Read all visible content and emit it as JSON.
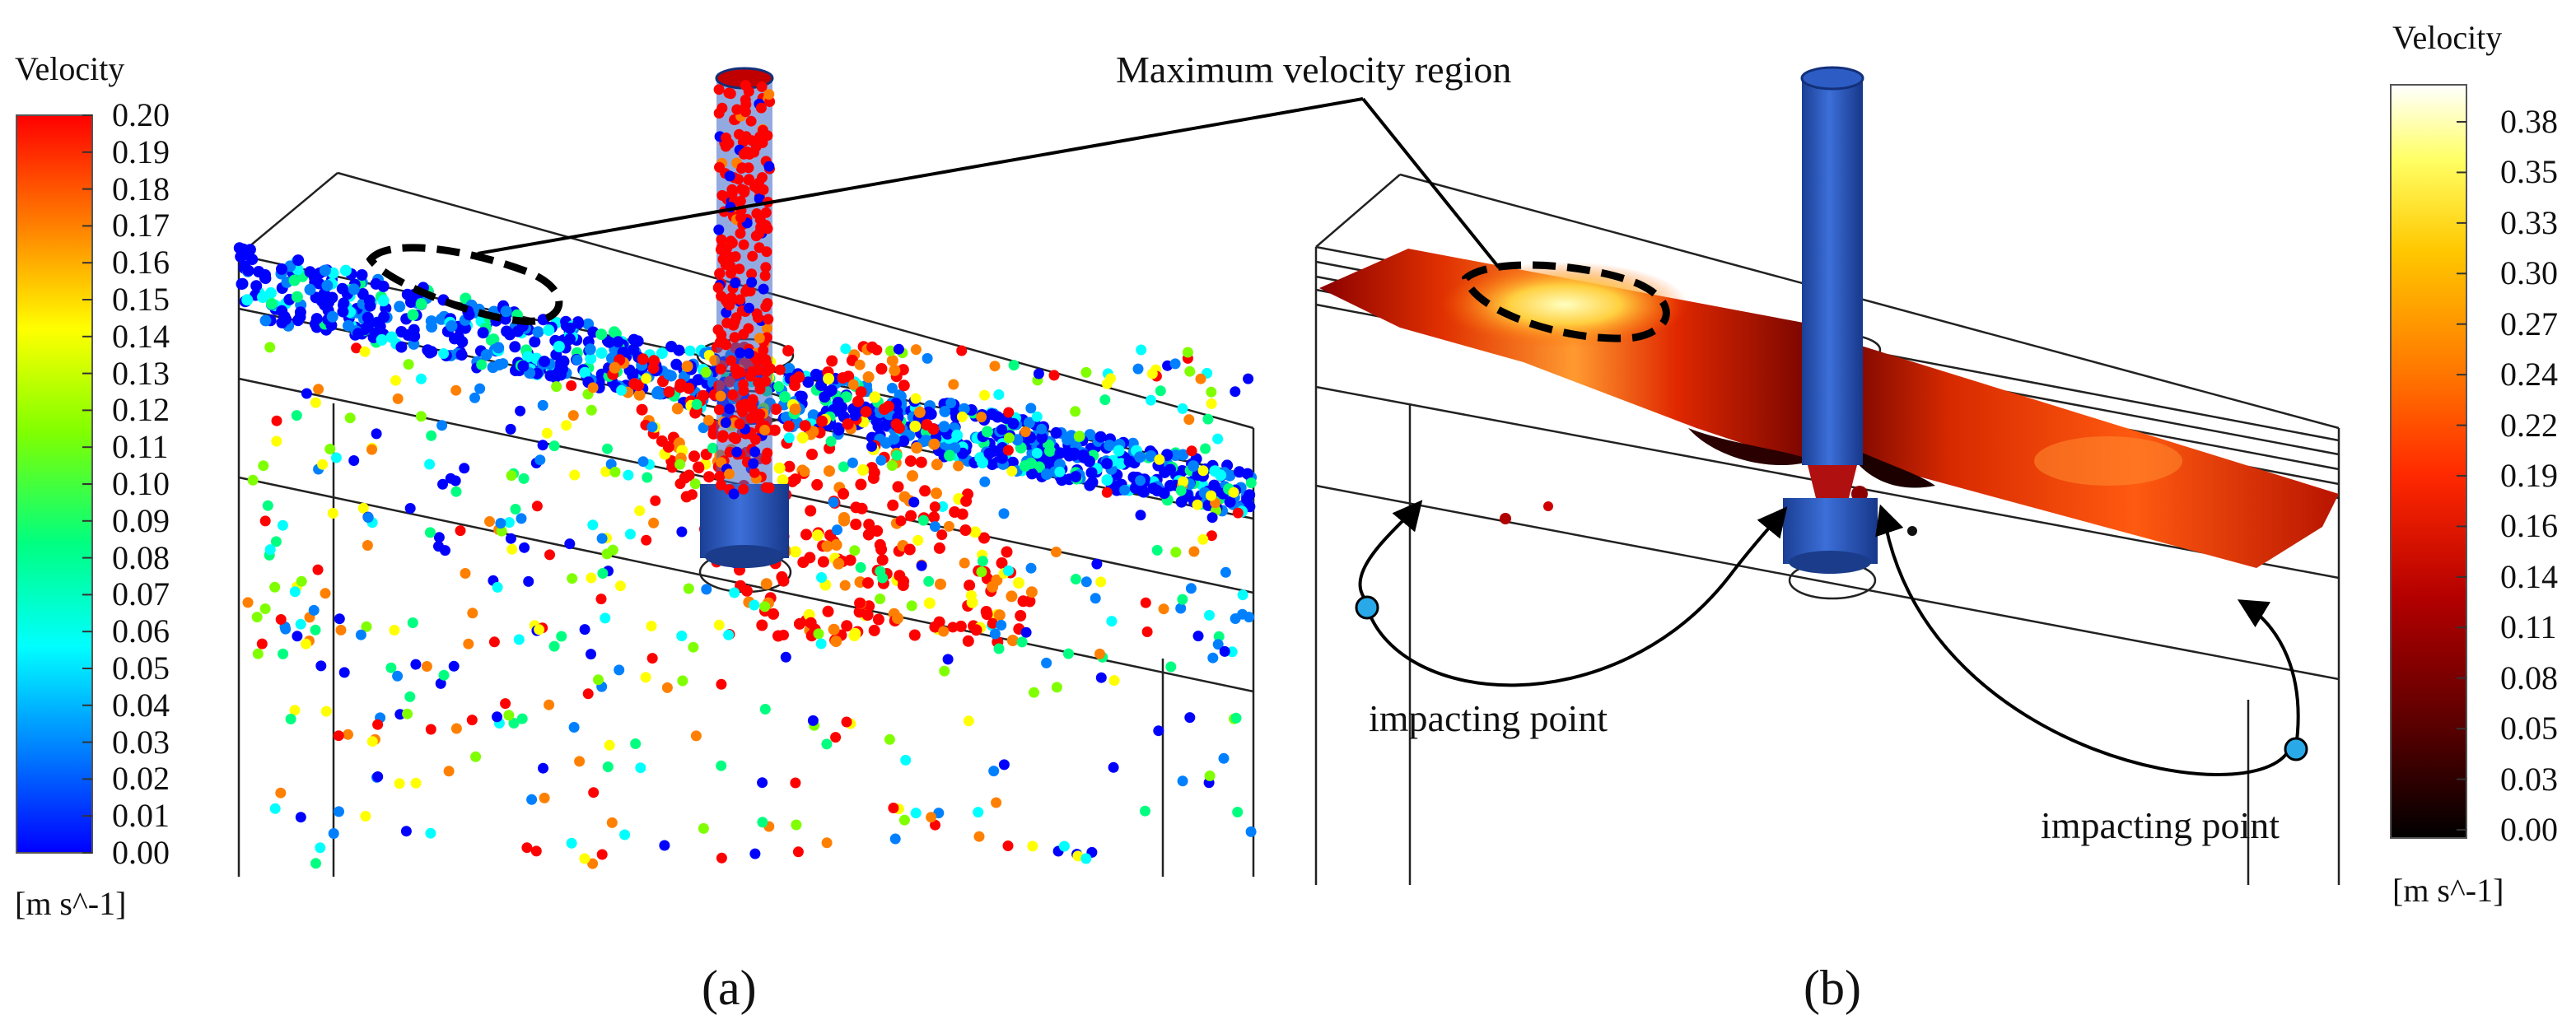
{
  "panel_a": {
    "legend_title": "Velocity",
    "ticks": [
      "0.20",
      "0.19",
      "0.18",
      "0.17",
      "0.16",
      "0.15",
      "0.14",
      "0.13",
      "0.12",
      "0.11",
      "0.10",
      "0.09",
      "0.08",
      "0.07",
      "0.06",
      "0.05",
      "0.04",
      "0.03",
      "0.02",
      "0.01",
      "0.00"
    ],
    "unit": "[m s^-1]",
    "caption": "(a)",
    "colormap": [
      "#0000ff",
      "#0080ff",
      "#00ffff",
      "#00ff80",
      "#80ff00",
      "#ffff00",
      "#ff8000",
      "#ff0000"
    ]
  },
  "panel_b": {
    "legend_title": "Velocity",
    "ticks": [
      "0.38",
      "0.35",
      "0.33",
      "0.30",
      "0.27",
      "0.24",
      "0.22",
      "0.19",
      "0.16",
      "0.14",
      "0.11",
      "0.08",
      "0.05",
      "0.03",
      "0.00"
    ],
    "unit": "[m s^-1]",
    "caption": "(b)",
    "impact_label_left": "impacting point",
    "impact_label_right": "impacting point",
    "colormap": [
      "#000000",
      "#5a0000",
      "#b40000",
      "#ff2800",
      "#ff7800",
      "#ffc800",
      "#ffff64",
      "#ffffff"
    ]
  },
  "annotation": {
    "max_region": "Maximum velocity region"
  },
  "colors": {
    "pipe_blue": "#2a5ac8",
    "marker_blue": "#29a9e8",
    "outline": "#000000"
  }
}
